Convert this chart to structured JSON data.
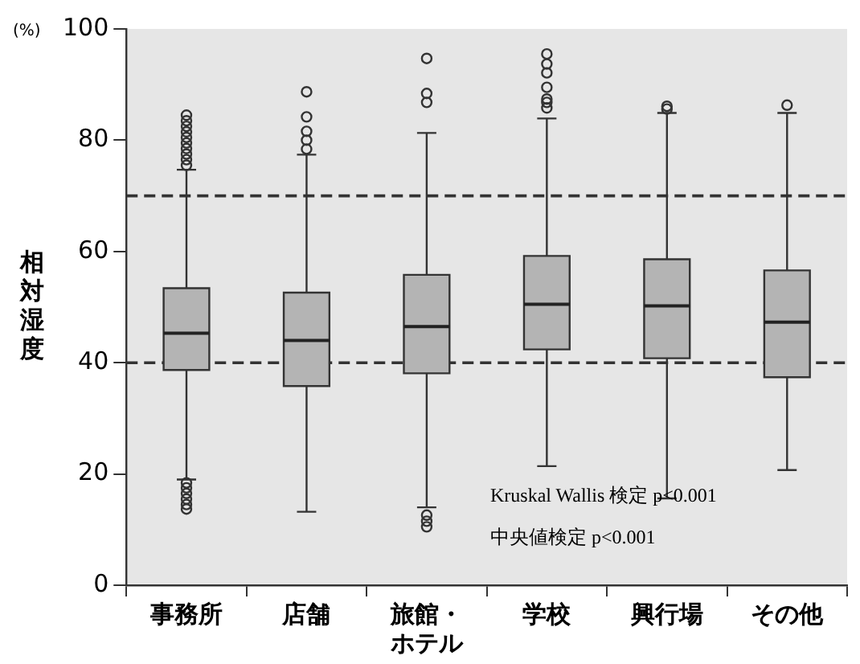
{
  "chart_data": {
    "type": "box",
    "ylabel": "相対湿度",
    "categories": [
      "事務所",
      "店舗",
      "旅館・ホテル",
      "学校",
      "興行場",
      "その他"
    ],
    "boxes": [
      {
        "low": 19,
        "q1": 38.7,
        "median": 45.3,
        "q3": 53.4,
        "high": 74.7,
        "outliers": [
          75.5,
          76.5,
          77.5,
          78.5,
          79.5,
          80.5,
          81.5,
          82.5,
          83.5,
          84.5,
          18.4,
          17.5,
          16.5,
          15.5,
          14.5,
          13.7
        ]
      },
      {
        "low": 13.2,
        "q1": 35.8,
        "median": 44,
        "q3": 52.6,
        "high": 77.4,
        "outliers": [
          78.4,
          80,
          81.6,
          84.2,
          88.7
        ]
      },
      {
        "low": 14,
        "q1": 38.1,
        "median": 46.5,
        "q3": 55.8,
        "high": 81.3,
        "outliers": [
          86.8,
          88.4,
          94.7,
          12.6,
          11.5,
          10.5
        ]
      },
      {
        "low": 21.4,
        "q1": 42.4,
        "median": 50.5,
        "q3": 59.2,
        "high": 83.9,
        "outliers": [
          85.8,
          86.8,
          87.4,
          89.5,
          92.1,
          93.7,
          95.5
        ]
      },
      {
        "low": 15.6,
        "q1": 40.8,
        "median": 50.2,
        "q3": 58.6,
        "high": 84.9,
        "outliers": [
          85.6,
          86.1
        ]
      },
      {
        "low": 20.7,
        "q1": 37.4,
        "median": 47.3,
        "q3": 56.6,
        "high": 84.9,
        "outliers": [
          86.3
        ]
      }
    ],
    "color": "#b4b4b4",
    "ylim": [
      0,
      100
    ],
    "yticks": [
      0,
      20,
      40,
      60,
      80,
      100
    ],
    "grid": false,
    "legend": false,
    "ref_lines": [
      {
        "axis": "y",
        "value": 70,
        "line_style": "dashed",
        "color": "#333333"
      },
      {
        "axis": "y",
        "value": 40,
        "line_style": "dashed",
        "color": "#333333"
      }
    ],
    "annotations": [
      "(%)",
      "Kruskal Wallis 検定 p<0.001",
      "中央値検定 p<0.001"
    ]
  }
}
